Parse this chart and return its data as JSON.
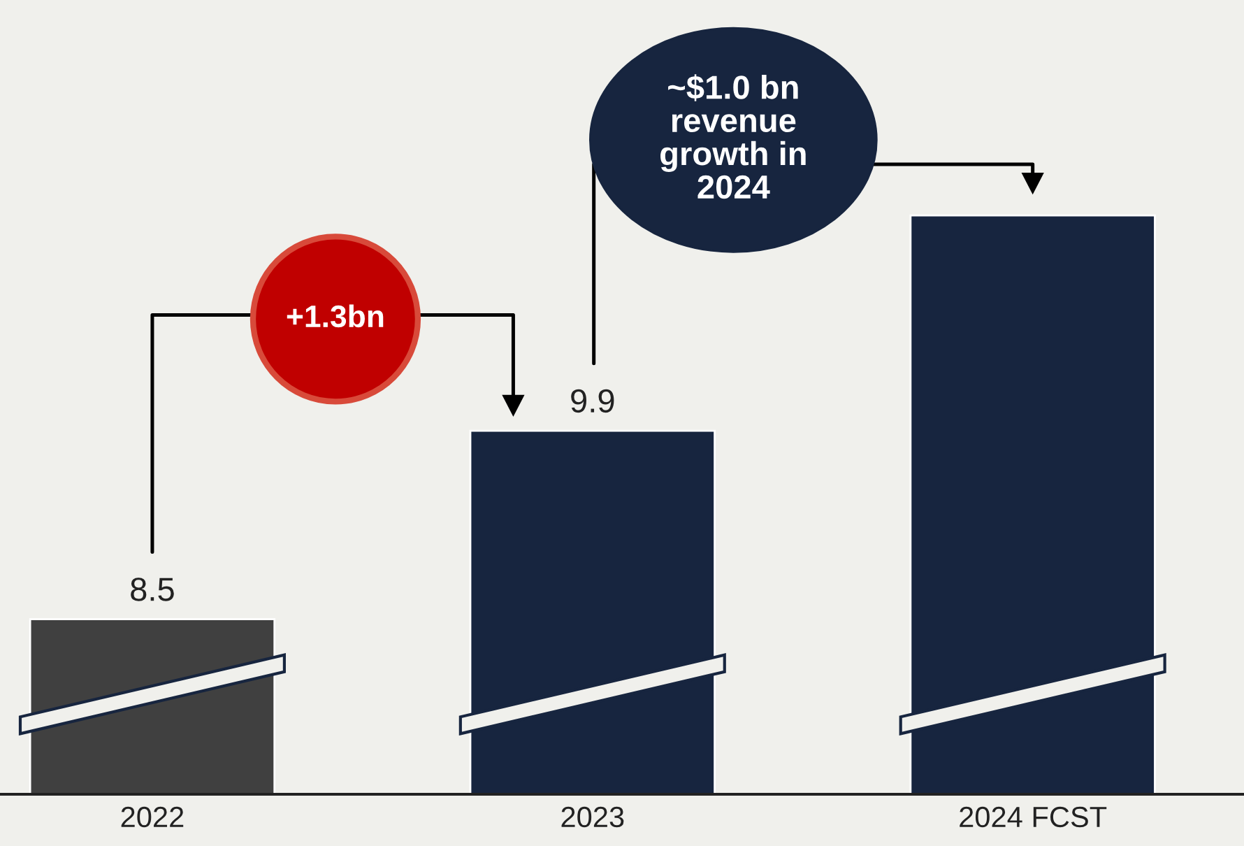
{
  "chart_data": {
    "type": "bar",
    "categories": [
      "2022",
      "2023",
      "2024 FCST"
    ],
    "values": [
      8.5,
      9.9,
      11.5
    ],
    "colors": [
      "#404040",
      "#17253f",
      "#17253f"
    ],
    "value_labels": [
      "8.5",
      "9.9",
      null
    ],
    "ylim": [
      7.2,
      13.1
    ],
    "tick_labels": "x",
    "grid": false,
    "annotations": [
      "+1.3bn",
      "~$1.0 bn\nrevenue\ngrowth in\n2024"
    ]
  }
}
